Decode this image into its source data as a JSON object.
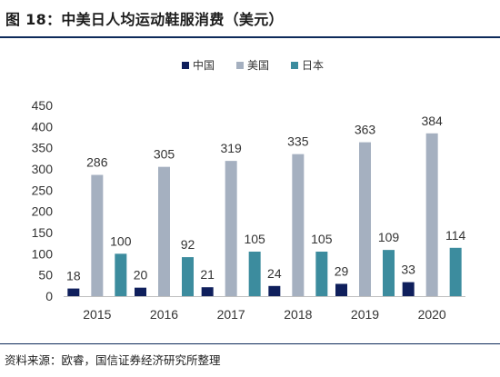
{
  "header": {
    "title": "图 18：中美日人均运动鞋服消费（美元）"
  },
  "footer": {
    "source": "资料来源：欧睿，国信证券经济研究所整理"
  },
  "colors": {
    "title_rule": "#0d2a5a",
    "series": [
      "#0f1f5c",
      "#a5b0c0",
      "#3c8c9e"
    ],
    "axis": "#bfbfbf",
    "text": "#333333"
  },
  "chart_data": {
    "type": "bar",
    "title": "",
    "xlabel": "",
    "ylabel": "",
    "categories": [
      "2015",
      "2016",
      "2017",
      "2018",
      "2019",
      "2020"
    ],
    "series": [
      {
        "name": "中国",
        "values": [
          18,
          20,
          21,
          24,
          29,
          33
        ]
      },
      {
        "name": "美国",
        "values": [
          286,
          305,
          319,
          335,
          363,
          384
        ]
      },
      {
        "name": "日本",
        "values": [
          100,
          92,
          105,
          105,
          109,
          114
        ]
      }
    ],
    "ylim": [
      0,
      450
    ],
    "yticks": [
      0,
      50,
      100,
      150,
      200,
      250,
      300,
      350,
      400,
      450
    ],
    "grid": false,
    "legend_position": "top-center",
    "data_labels": true
  }
}
